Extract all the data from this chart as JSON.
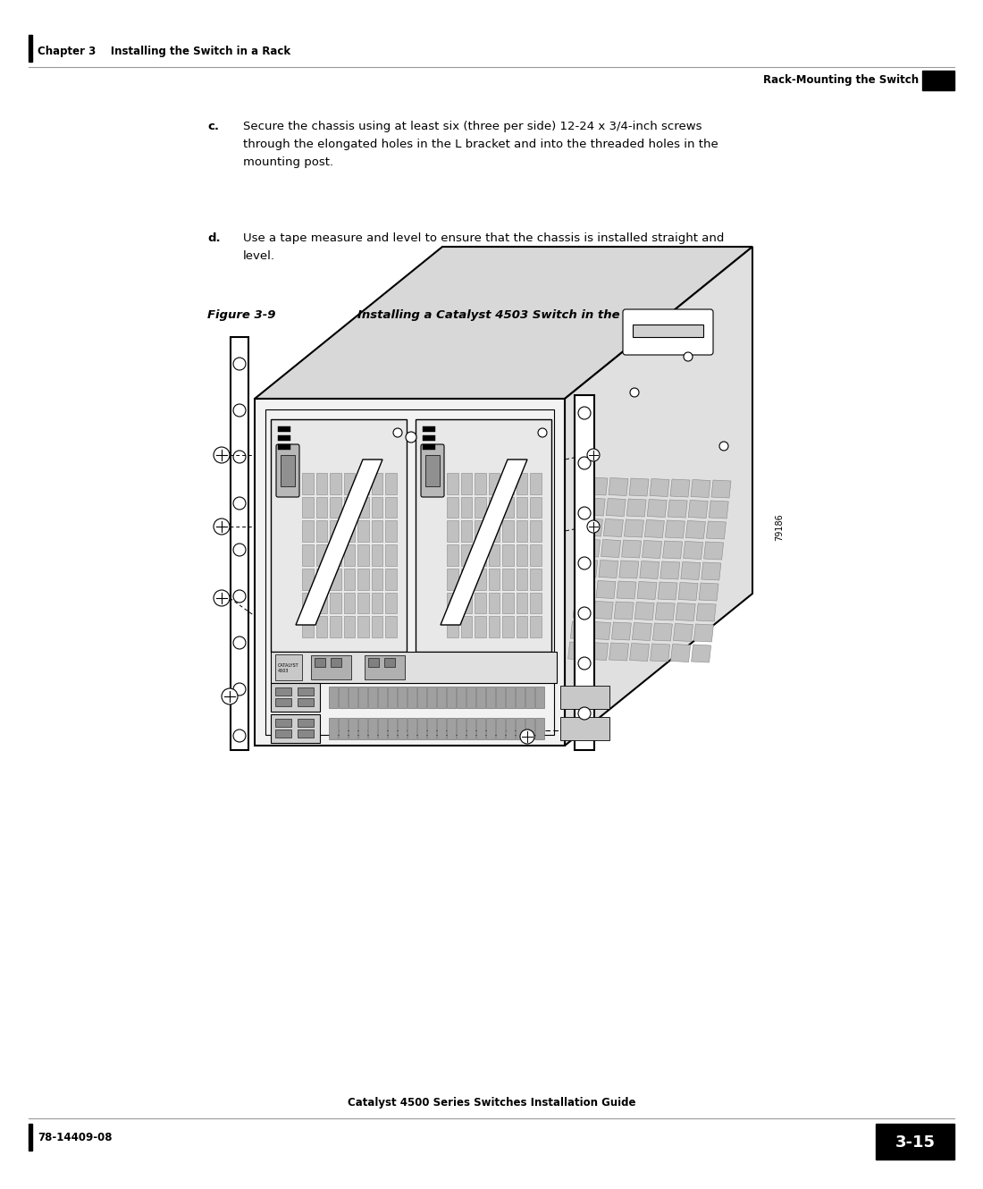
{
  "background_color": "#ffffff",
  "header_left_text": "Chapter 3    Installing the Switch in a Rack",
  "header_right_text": "Rack-Mounting the Switch",
  "footer_left_text": "78-14409-08",
  "footer_center_text": "Catalyst 4500 Series Switches Installation Guide",
  "footer_page": "3-15",
  "body_text_c": "Secure the chassis using at least six (three per side) 12-24 x 3/4-inch screws\nthrough the elongated holes in the L bracket and into the threaded holes in the\nmounting post.",
  "body_text_d": "Use a tape measure and level to ensure that the chassis is installed straight and\nlevel.",
  "figure_label": "Figure 3-9",
  "figure_title": "Installing a Catalyst 4503 Switch in the Rack",
  "figure_num": "79186",
  "text_color": "#000000",
  "header_font_size": 8.5,
  "body_font_size": 9.5,
  "figure_label_font_size": 9.5,
  "footer_font_size": 8.5,
  "page_num_font_size": 13
}
